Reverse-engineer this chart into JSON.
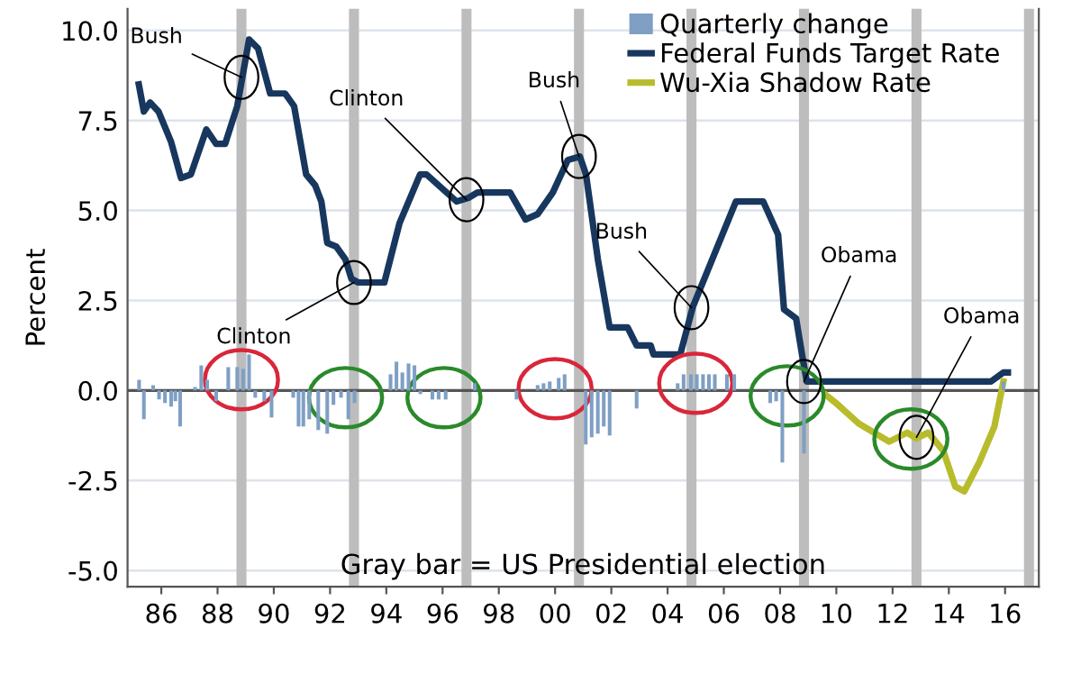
{
  "chart_data": {
    "type": "line",
    "ylabel": "Percent",
    "xlim": [
      1984.8,
      2017.2
    ],
    "ylim": [
      -5.45,
      10.6
    ],
    "xticks": [
      {
        "value": 1986,
        "label": "86"
      },
      {
        "value": 1988,
        "label": "88"
      },
      {
        "value": 1990,
        "label": "90"
      },
      {
        "value": 1992,
        "label": "92"
      },
      {
        "value": 1994,
        "label": "94"
      },
      {
        "value": 1996,
        "label": "96"
      },
      {
        "value": 1998,
        "label": "98"
      },
      {
        "value": 2000,
        "label": "00"
      },
      {
        "value": 2002,
        "label": "02"
      },
      {
        "value": 2004,
        "label": "04"
      },
      {
        "value": 2006,
        "label": "06"
      },
      {
        "value": 2008,
        "label": "08"
      },
      {
        "value": 2010,
        "label": "10"
      },
      {
        "value": 2012,
        "label": "12"
      },
      {
        "value": 2014,
        "label": "14"
      },
      {
        "value": 2016,
        "label": "16"
      }
    ],
    "yticks": [
      {
        "value": -5,
        "label": "-5.0"
      },
      {
        "value": -2.5,
        "label": "-2.5"
      },
      {
        "value": 0,
        "label": "0.0"
      },
      {
        "value": 2.5,
        "label": "2.5"
      },
      {
        "value": 5,
        "label": "5.0"
      },
      {
        "value": 7.5,
        "label": "7.5"
      },
      {
        "value": 10,
        "label": "10.0"
      }
    ],
    "grid": "y",
    "legend": "top right",
    "series": [
      {
        "name": "Quarterly change",
        "type": "bar",
        "color": "#7f9fc4",
        "x": [
          1985.21,
          1985.38,
          1985.71,
          1985.92,
          1986.13,
          1986.35,
          1986.5,
          1986.67,
          1987.2,
          1987.42,
          1987.63,
          1987.95,
          1988.38,
          1988.7,
          1988.91,
          1989.12,
          1989.34,
          1989.66,
          1989.92,
          1990.69,
          1990.88,
          1991.05,
          1991.26,
          1991.58,
          1991.9,
          1992.12,
          1992.39,
          1992.65,
          1992.87,
          1994.15,
          1994.36,
          1994.57,
          1994.79,
          1995.0,
          1995.21,
          1995.64,
          1995.86,
          1996.11,
          1997.14,
          1998.63,
          1999.38,
          1999.59,
          1999.81,
          2000.13,
          2000.34,
          2001.09,
          2001.3,
          2001.52,
          2001.73,
          2001.94,
          2002.9,
          2004.36,
          2004.57,
          2004.83,
          2005.04,
          2005.26,
          2005.47,
          2005.68,
          2006.11,
          2006.37,
          2007.65,
          2007.86,
          2008.08,
          2008.85,
          2015.94
        ],
        "values": [
          0.3,
          -0.8,
          0.15,
          -0.25,
          -0.35,
          -0.45,
          -0.3,
          -1.0,
          0.1,
          0.7,
          0.3,
          -0.3,
          0.65,
          0.65,
          0.6,
          1.0,
          -0.2,
          -0.3,
          -0.75,
          -0.2,
          -1.0,
          -1.0,
          -0.8,
          -1.1,
          -1.2,
          -0.4,
          -0.2,
          -0.8,
          -0.35,
          0.45,
          0.8,
          0.5,
          0.75,
          0.7,
          -0.1,
          -0.25,
          -0.25,
          -0.25,
          0.2,
          -0.25,
          0.15,
          0.2,
          0.25,
          0.35,
          0.45,
          -1.5,
          -1.3,
          -1.2,
          -1.0,
          -1.25,
          -0.5,
          0.2,
          0.45,
          0.45,
          0.45,
          0.45,
          0.45,
          0.45,
          0.45,
          0.45,
          -0.35,
          -0.3,
          -2.0,
          -1.75,
          0.25
        ]
      },
      {
        "name": "Federal Funds Target Rate",
        "color": "#17375e",
        "x": [
          1985.2,
          1985.38,
          1985.6,
          1985.9,
          1986.35,
          1986.7,
          1987.05,
          1987.6,
          1987.95,
          1988.27,
          1988.7,
          1989.12,
          1989.44,
          1989.87,
          1990.4,
          1990.72,
          1991.15,
          1991.47,
          1991.69,
          1991.9,
          1992.22,
          1992.54,
          1992.76,
          1993.0,
          1993.93,
          1994.47,
          1995.2,
          1995.43,
          1996.5,
          1996.92,
          1997.24,
          1998.4,
          1998.95,
          1999.38,
          1999.92,
          2000.45,
          2000.88,
          2001.1,
          2001.52,
          2001.94,
          2002.58,
          2002.9,
          2003.4,
          2003.5,
          2004.45,
          2004.9,
          2006.43,
          2007.4,
          2007.93,
          2008.14,
          2008.57,
          2008.78,
          2008.95,
          2015.5,
          2015.94,
          2016.1
        ],
        "values": [
          8.5,
          7.75,
          8.0,
          7.75,
          6.9,
          5.9,
          6.0,
          7.25,
          6.85,
          6.85,
          7.9,
          9.75,
          9.5,
          8.25,
          8.25,
          7.9,
          6.0,
          5.7,
          5.25,
          4.1,
          4.0,
          3.65,
          3.1,
          3.0,
          3.0,
          4.65,
          6.0,
          6.0,
          5.25,
          5.35,
          5.5,
          5.5,
          4.75,
          4.9,
          5.5,
          6.4,
          6.5,
          6.0,
          3.65,
          1.75,
          1.75,
          1.25,
          1.25,
          1.0,
          1.0,
          2.33,
          5.25,
          5.25,
          4.33,
          2.25,
          2.0,
          1.0,
          0.25,
          0.25,
          0.5,
          0.5
        ]
      },
      {
        "name": "Wu-Xia Shadow Rate",
        "color": "#b8bc2c",
        "x": [
          2009.64,
          2009.96,
          2010.8,
          2011.88,
          2012.52,
          2012.84,
          2013.27,
          2013.8,
          2014.23,
          2014.55,
          2015.08,
          2015.62,
          2015.94
        ],
        "values": [
          -0.13,
          -0.33,
          -0.92,
          -1.42,
          -1.17,
          -1.33,
          -1.17,
          -1.67,
          -2.67,
          -2.8,
          -2.0,
          -1.0,
          0.25
        ]
      }
    ],
    "ref_lines": [
      {
        "axis": "y",
        "value": 0,
        "color": "#555555"
      },
      {
        "axis": "x",
        "value": 1988.85,
        "color": "#bdbdbd"
      },
      {
        "axis": "x",
        "value": 1992.85,
        "color": "#bdbdbd"
      },
      {
        "axis": "x",
        "value": 1996.85,
        "color": "#bdbdbd"
      },
      {
        "axis": "x",
        "value": 2000.85,
        "color": "#bdbdbd"
      },
      {
        "axis": "x",
        "value": 2004.85,
        "color": "#bdbdbd"
      },
      {
        "axis": "x",
        "value": 2008.85,
        "color": "#bdbdbd"
      },
      {
        "axis": "x",
        "value": 2012.85,
        "color": "#bdbdbd"
      },
      {
        "axis": "x",
        "value": 2016.85,
        "color": "#bdbdbd"
      }
    ],
    "annotations": [
      {
        "text": "Bush",
        "x": 1988.85,
        "y": 8.7
      },
      {
        "text": "Clinton",
        "x": 1992.85,
        "y": 3.0
      },
      {
        "text": "Clinton",
        "x": 1996.85,
        "y": 5.3
      },
      {
        "text": "Bush",
        "x": 2000.85,
        "y": 6.5
      },
      {
        "text": "Bush",
        "x": 2004.85,
        "y": 2.3
      },
      {
        "text": "Obama",
        "x": 2008.85,
        "y": 0.25
      },
      {
        "text": "Obama",
        "x": 2012.85,
        "y": -1.3
      },
      "Gray bar = US Presidential election"
    ]
  }
}
